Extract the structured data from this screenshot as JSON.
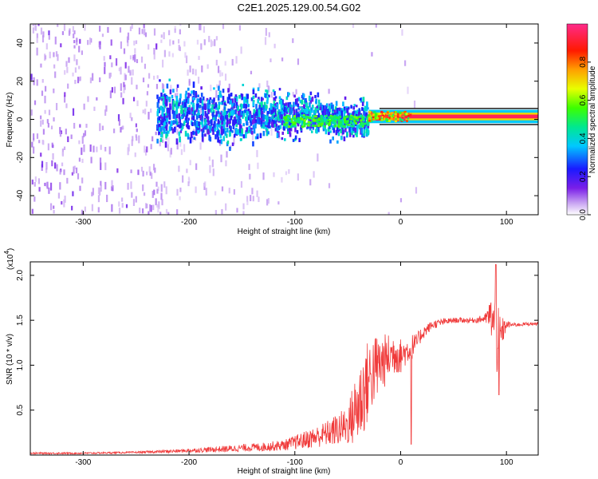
{
  "title": "C2E1.2025.129.00.54.G02",
  "colors": {
    "snr_line": "#f03a3a",
    "signal_band_dark": "#1a1a1a",
    "noise_purple": "#7a1ee8",
    "noise_light": "#d9b8f5"
  },
  "chart_data": [
    {
      "type": "heatmap",
      "title": "C2E1.2025.129.00.54.G02",
      "xlabel": "Height of straight line (km)",
      "ylabel": "Frequency (Hz)",
      "xlim": [
        -350,
        130
      ],
      "ylim": [
        -50,
        50
      ],
      "x_ticks": [
        -300,
        -200,
        -100,
        0,
        100
      ],
      "x_tick_labels": [
        "-300",
        "-200",
        "-100",
        "0",
        "100"
      ],
      "y_ticks": [
        -40,
        -20,
        0,
        20,
        40
      ],
      "y_tick_labels": [
        "-40",
        "-20",
        "0",
        "20",
        "40"
      ],
      "colorbar": {
        "label": "Normalized spectral amplitude",
        "range": [
          0,
          1
        ],
        "ticks": [
          0.0,
          0.2,
          0.4,
          0.6,
          0.8
        ],
        "tick_labels": [
          "0.0",
          "0.2",
          "0.4",
          "0.6",
          "0.8"
        ],
        "colormap": "rainbow (white-violet-blue-cyan-green-yellow-red-magenta)"
      },
      "description_of_values": {
        "noise_region_x": [
          -350,
          -230
        ],
        "noise_amplitude": 0.12,
        "spread_band_x": [
          -230,
          -30
        ],
        "spread_band_freq_range_hz": [
          -15,
          12
        ],
        "spread_band_amplitude": 0.3,
        "carrier_x": [
          -30,
          130
        ],
        "carrier_frequency_hz": 1.5,
        "carrier_amplitude": 0.95
      }
    },
    {
      "type": "line",
      "xlabel": "Height of straight line (km)",
      "ylabel": "SNR (10 * v/v)",
      "y_scale_label": "(x10",
      "y_scale_exponent": "4",
      "xlim": [
        -350,
        130
      ],
      "ylim": [
        0,
        2.15
      ],
      "x_ticks": [
        -300,
        -200,
        -100,
        0,
        100
      ],
      "x_tick_labels": [
        "-300",
        "-200",
        "-100",
        "0",
        "100"
      ],
      "y_ticks": [
        0.5,
        1.0,
        1.5,
        2.0
      ],
      "y_tick_labels": [
        "0.5",
        "1.0",
        "1.5",
        "2.0"
      ],
      "series": [
        {
          "x": [
            -350,
            -300,
            -250,
            -220,
            -200,
            -180,
            -160,
            -150,
            -130,
            -110,
            -100,
            -90,
            -80,
            -70,
            -60,
            -50,
            -45,
            -40,
            -35,
            -30,
            -25,
            -20,
            -15,
            -10,
            -5,
            0,
            5,
            10,
            15,
            20,
            25,
            30,
            40,
            50,
            60,
            70,
            80,
            85,
            90,
            92,
            95,
            100,
            110,
            120,
            130
          ],
          "y": [
            0.02,
            0.02,
            0.03,
            0.04,
            0.05,
            0.06,
            0.07,
            0.08,
            0.09,
            0.11,
            0.14,
            0.17,
            0.2,
            0.24,
            0.28,
            0.33,
            0.45,
            0.55,
            0.7,
            0.85,
            0.95,
            1.0,
            1.05,
            1.1,
            1.15,
            1.1,
            1.15,
            1.2,
            1.25,
            1.35,
            1.4,
            1.45,
            1.48,
            1.5,
            1.5,
            1.5,
            1.52,
            1.55,
            1.4,
            1.2,
            1.35,
            1.45,
            1.45,
            1.46,
            1.46
          ],
          "noise_amplitude": [
            0.01,
            0.01,
            0.01,
            0.02,
            0.02,
            0.03,
            0.04,
            0.04,
            0.05,
            0.06,
            0.08,
            0.1,
            0.12,
            0.14,
            0.18,
            0.22,
            0.35,
            0.45,
            0.5,
            0.45,
            0.4,
            0.35,
            0.3,
            0.25,
            0.25,
            0.2,
            0.15,
            0.15,
            0.1,
            0.08,
            0.06,
            0.05,
            0.04,
            0.03,
            0.03,
            0.03,
            0.05,
            0.2,
            0.4,
            0.45,
            0.2,
            0.04,
            0.02,
            0.02,
            0.02
          ]
        }
      ],
      "features": [
        {
          "x": 10,
          "y": 0.12,
          "note": "dropout"
        },
        {
          "x": 90,
          "y": 2.12,
          "note": "peak"
        },
        {
          "x": 93,
          "y": 0.67,
          "note": "dip"
        }
      ]
    }
  ]
}
